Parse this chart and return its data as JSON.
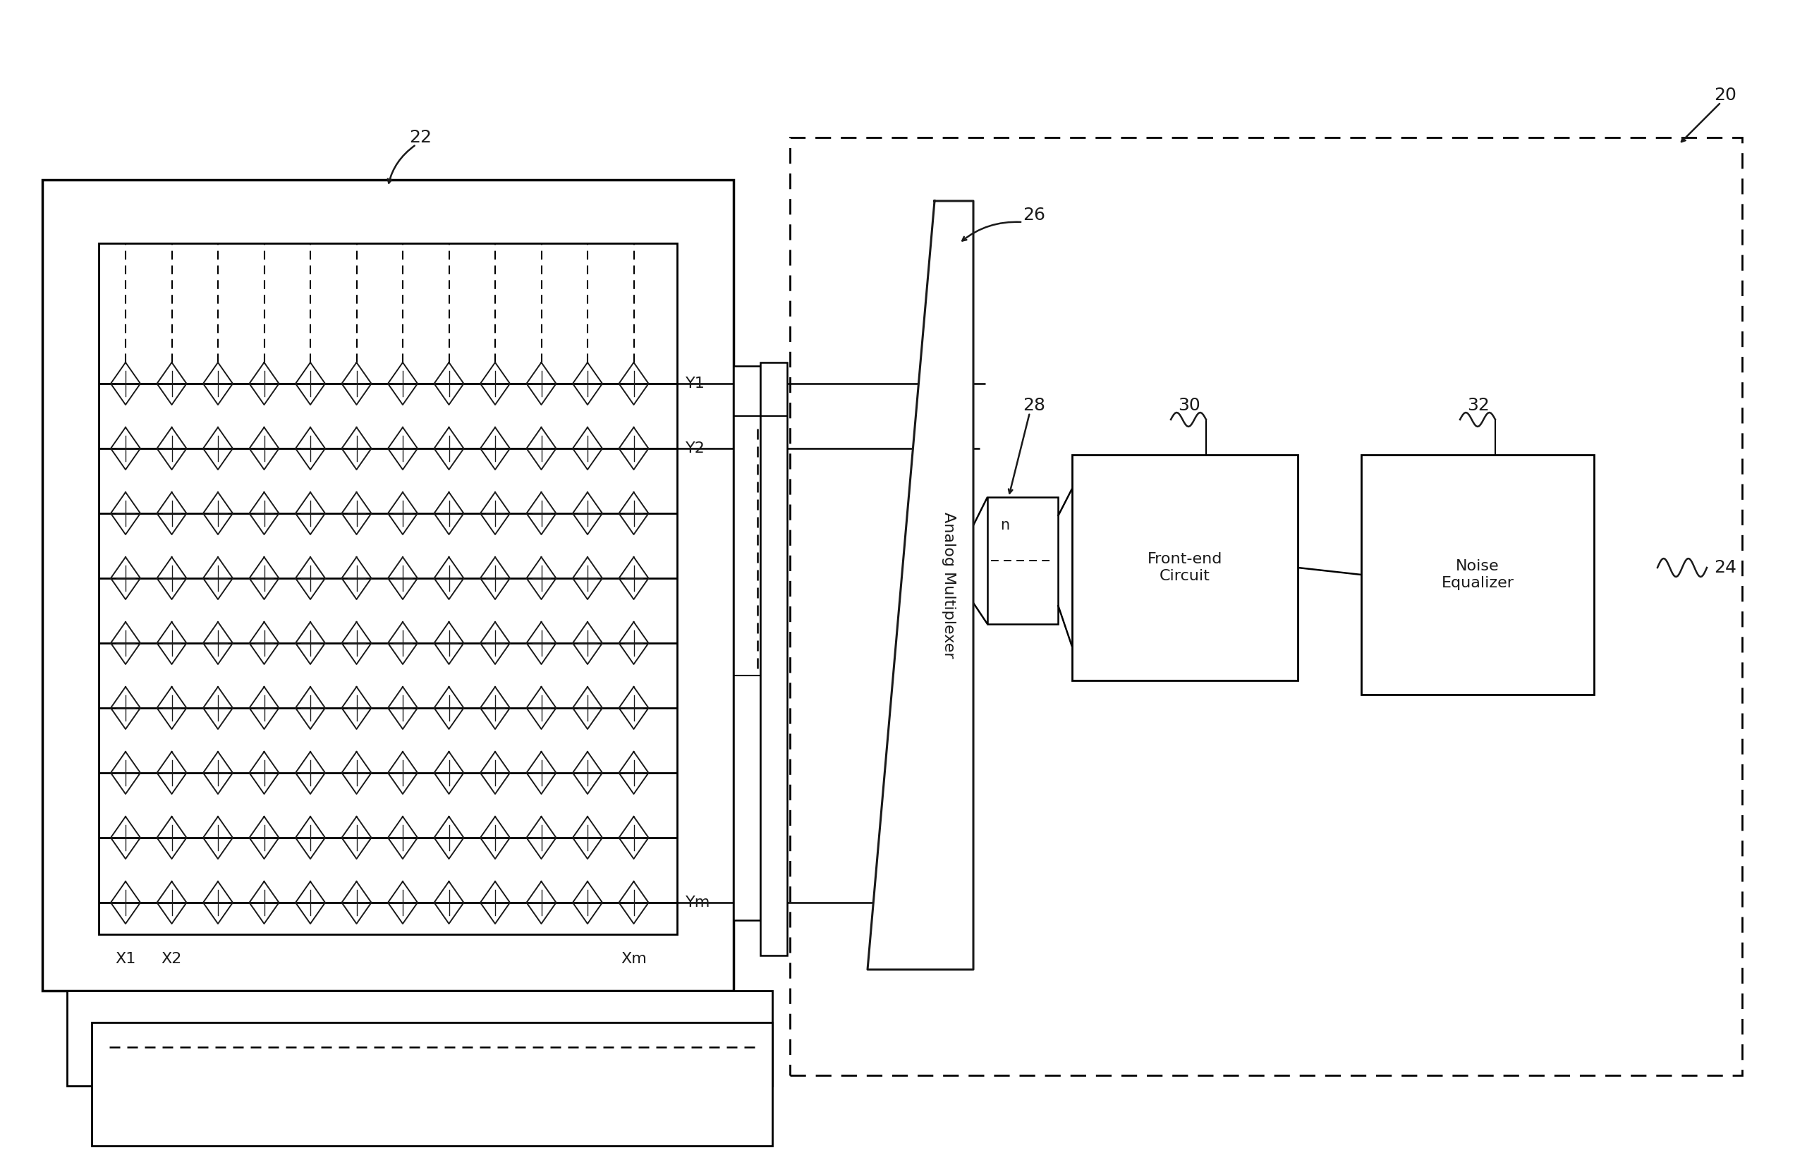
{
  "line_color": "#1a1a1a",
  "label_20": "20",
  "label_22": "22",
  "label_24": "24",
  "label_26": "26",
  "label_28": "28",
  "label_30": "30",
  "label_32": "32",
  "label_n": "n",
  "text_mux": "Analog Multiplexer",
  "text_frontend": "Front-end\nCircuit",
  "text_noise": "Noise\nEqualizer",
  "text_Y1": "Y1",
  "text_Y2": "Y2",
  "text_Ym": "Ym",
  "text_X1": "X1",
  "text_X2": "X2",
  "text_Xm": "Xm",
  "grid_rows": 9,
  "grid_cols": 12,
  "figw": 25.62,
  "figh": 16.55
}
